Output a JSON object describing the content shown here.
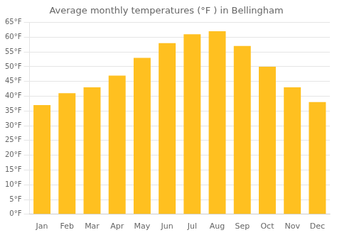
{
  "chart_data": {
    "type": "bar",
    "title": "Average monthly temperatures (°F ) in Bellingham",
    "categories": [
      "Jan",
      "Feb",
      "Mar",
      "Apr",
      "May",
      "Jun",
      "Jul",
      "Aug",
      "Sep",
      "Oct",
      "Nov",
      "Dec"
    ],
    "values": [
      37,
      41,
      43,
      47,
      53,
      58,
      61,
      62,
      57,
      50,
      43,
      38
    ],
    "color": "#FFC020",
    "ylim": [
      0,
      65
    ],
    "yticks": [
      {
        "value": 0,
        "label": "0°F"
      },
      {
        "value": 5,
        "label": "5°F"
      },
      {
        "value": 10,
        "label": "10°F"
      },
      {
        "value": 15,
        "label": "15°F"
      },
      {
        "value": 20,
        "label": "20°F"
      },
      {
        "value": 25,
        "label": "25°F"
      },
      {
        "value": 30,
        "label": "30°F"
      },
      {
        "value": 35,
        "label": "35°F"
      },
      {
        "value": 40,
        "label": "40°F"
      },
      {
        "value": 45,
        "label": "45°F"
      },
      {
        "value": 50,
        "label": "50°F"
      },
      {
        "value": 55,
        "label": "55°F"
      },
      {
        "value": 60,
        "label": "60°F"
      },
      {
        "value": 65,
        "label": "65°F"
      }
    ],
    "grid": true
  }
}
